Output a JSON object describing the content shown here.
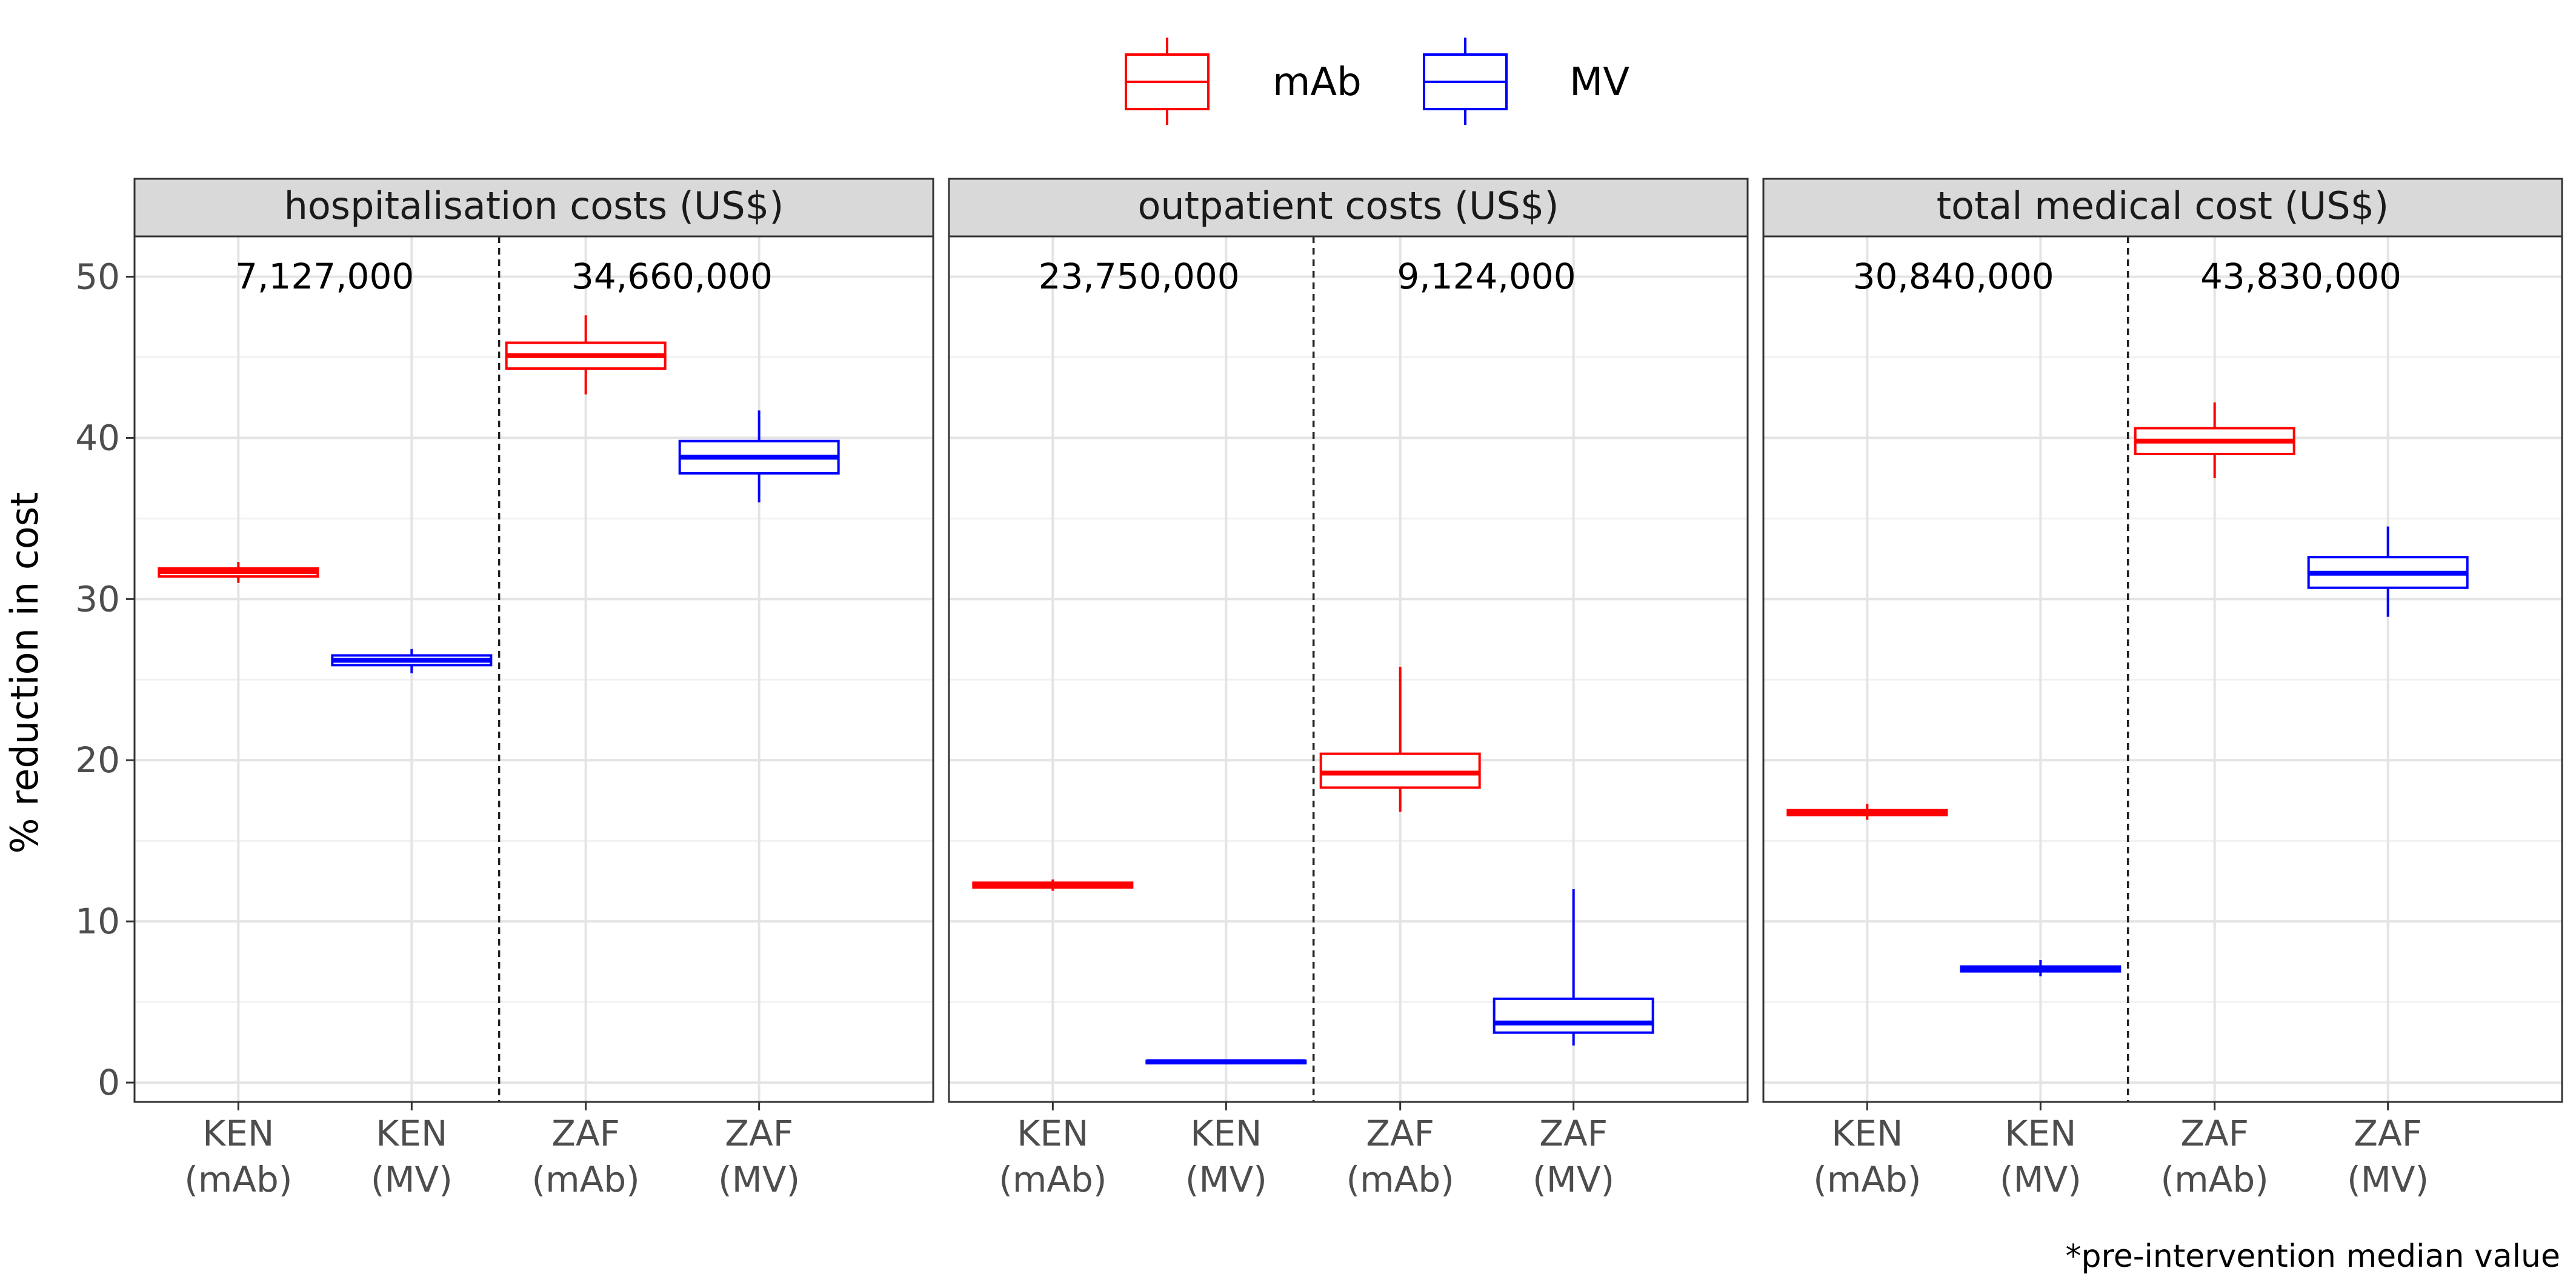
{
  "chart_data": {
    "type": "box",
    "ylabel": "% reduction in cost",
    "ylim": [
      -1.2,
      52.5
    ],
    "yticks": [
      "0",
      "10",
      "20",
      "30",
      "40",
      "50"
    ],
    "legend": {
      "placement": "top",
      "entries": [
        {
          "name": "mAb",
          "color": "#ff0000"
        },
        {
          "name": "MV",
          "color": "#0000ff"
        }
      ]
    },
    "footnote": "*pre-intervention median value",
    "panels": [
      {
        "title": "hospitalisation costs (US$)",
        "annotations": [
          "7,127,000",
          "34,660,000"
        ],
        "categories": [
          "KEN\n(mAb)",
          "KEN\n(MV)",
          "ZAF\n(mAb)",
          "ZAF\n(MV)"
        ],
        "boxes": [
          {
            "category": "KEN (mAb)",
            "group": "mAb",
            "min": 31.0,
            "q1": 31.4,
            "median": 31.7,
            "q3": 31.9,
            "max": 32.3
          },
          {
            "category": "KEN (MV)",
            "group": "MV",
            "min": 25.4,
            "q1": 25.9,
            "median": 26.2,
            "q3": 26.5,
            "max": 26.9
          },
          {
            "category": "ZAF (mAb)",
            "group": "mAb",
            "min": 42.7,
            "q1": 44.3,
            "median": 45.1,
            "q3": 45.9,
            "max": 47.6
          },
          {
            "category": "ZAF (MV)",
            "group": "MV",
            "min": 36.0,
            "q1": 37.8,
            "median": 38.8,
            "q3": 39.8,
            "max": 41.7
          }
        ]
      },
      {
        "title": "outpatient costs (US$)",
        "annotations": [
          "23,750,000",
          "9,124,000"
        ],
        "categories": [
          "KEN\n(mAb)",
          "KEN\n(MV)",
          "ZAF\n(mAb)",
          "ZAF\n(MV)"
        ],
        "boxes": [
          {
            "category": "KEN (mAb)",
            "group": "mAb",
            "min": 11.9,
            "q1": 12.1,
            "median": 12.2,
            "q3": 12.4,
            "max": 12.6
          },
          {
            "category": "KEN (MV)",
            "group": "MV",
            "min": 1.2,
            "q1": 1.25,
            "median": 1.3,
            "q3": 1.35,
            "max": 1.4
          },
          {
            "category": "ZAF (mAb)",
            "group": "mAb",
            "min": 16.8,
            "q1": 18.3,
            "median": 19.2,
            "q3": 20.4,
            "max": 25.8
          },
          {
            "category": "ZAF (MV)",
            "group": "MV",
            "min": 2.3,
            "q1": 3.1,
            "median": 3.7,
            "q3": 5.2,
            "max": 12.0
          }
        ]
      },
      {
        "title": "total medical cost (US$)",
        "annotations": [
          "30,840,000",
          "43,830,000"
        ],
        "categories": [
          "KEN\n(mAb)",
          "KEN\n(MV)",
          "ZAF\n(mAb)",
          "ZAF\n(MV)"
        ],
        "boxes": [
          {
            "category": "KEN (mAb)",
            "group": "mAb",
            "min": 16.3,
            "q1": 16.6,
            "median": 16.8,
            "q3": 16.9,
            "max": 17.3
          },
          {
            "category": "KEN (MV)",
            "group": "MV",
            "min": 6.6,
            "q1": 6.9,
            "median": 7.1,
            "q3": 7.2,
            "max": 7.6
          },
          {
            "category": "ZAF (mAb)",
            "group": "mAb",
            "min": 37.5,
            "q1": 39.0,
            "median": 39.8,
            "q3": 40.6,
            "max": 42.2
          },
          {
            "category": "ZAF (MV)",
            "group": "MV",
            "min": 28.9,
            "q1": 30.7,
            "median": 31.6,
            "q3": 32.6,
            "max": 34.5
          }
        ]
      }
    ]
  }
}
